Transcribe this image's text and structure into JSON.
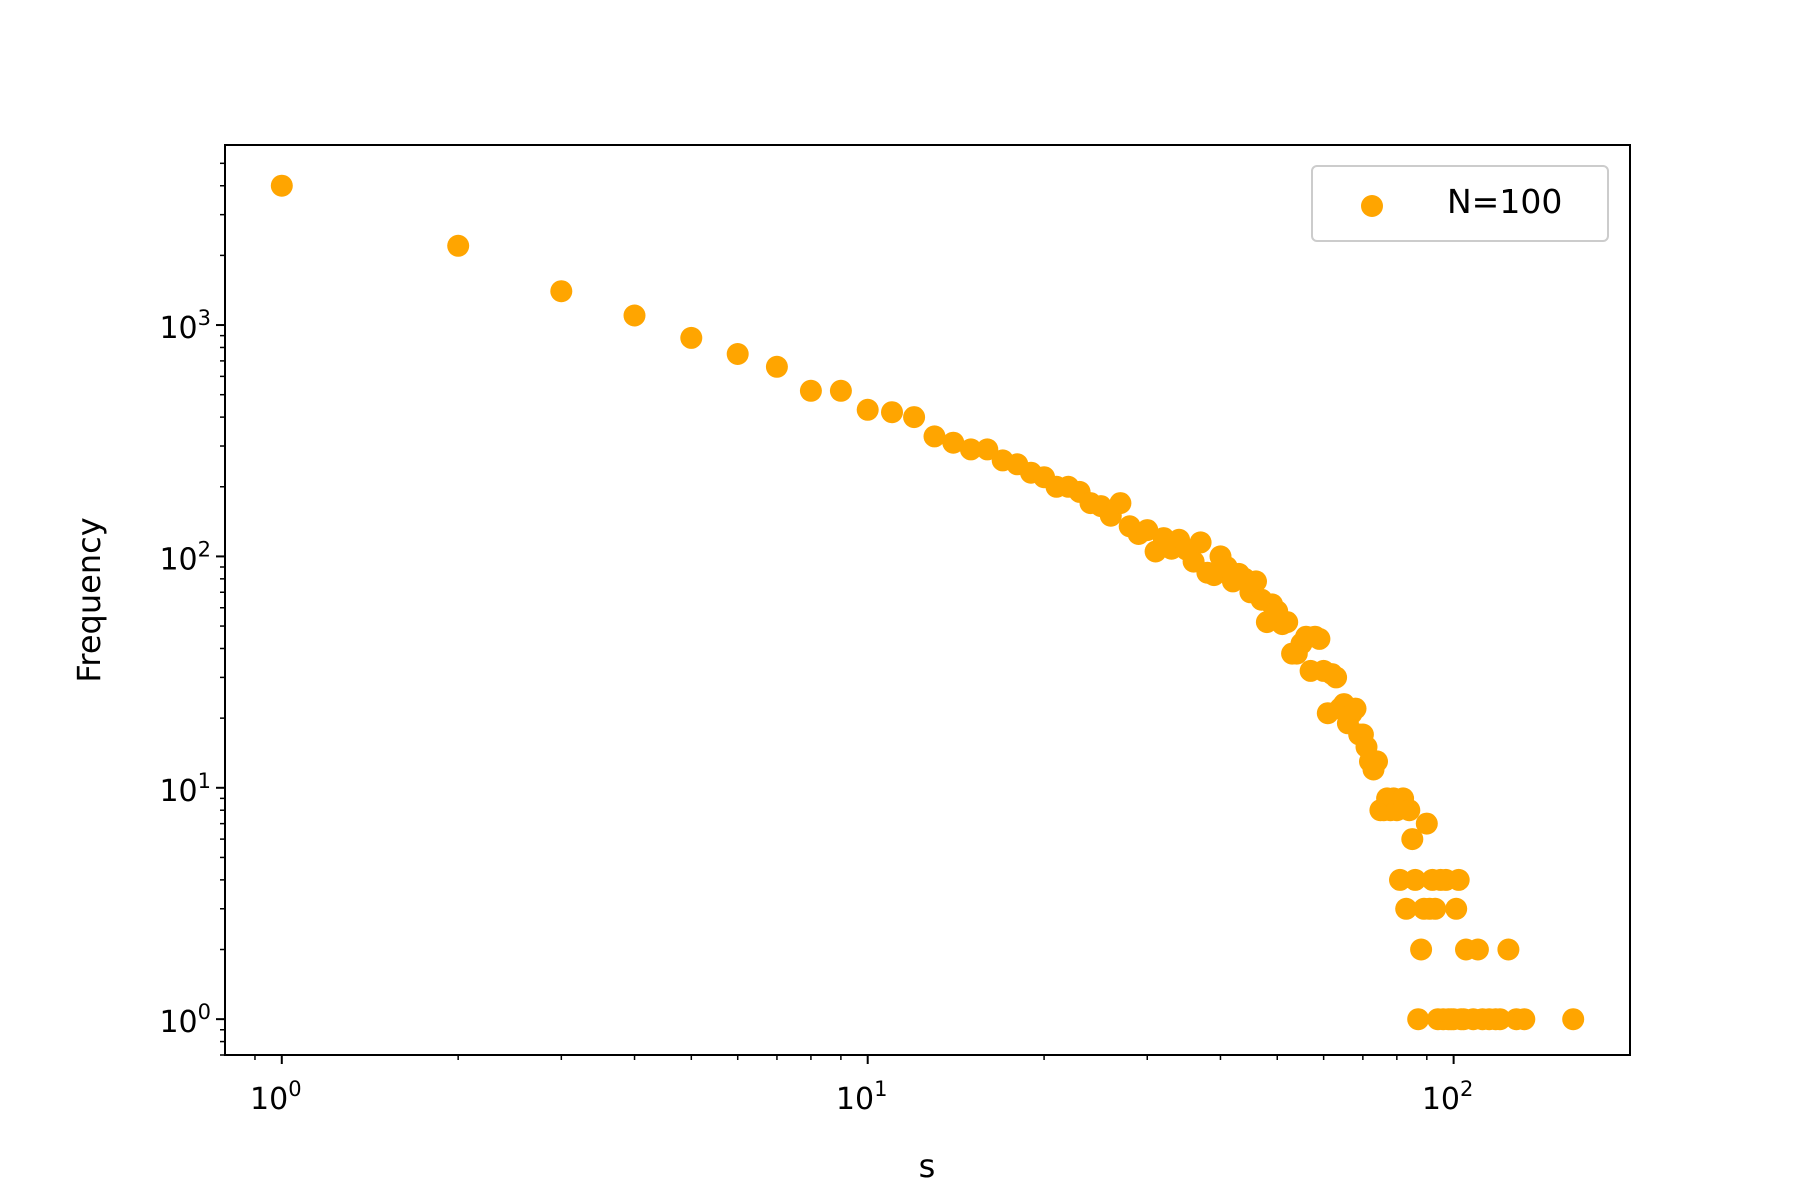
{
  "chart_data": {
    "type": "scatter",
    "title": "",
    "xlabel": "s",
    "ylabel": "Frequency",
    "xscale": "log",
    "yscale": "log",
    "xlim": [
      0.8,
      200
    ],
    "ylim": [
      0.7,
      6000
    ],
    "grid": false,
    "legend_position": "top-right",
    "x_ticks": [
      {
        "value": 1,
        "base": "10",
        "exp": "0"
      },
      {
        "value": 10,
        "base": "10",
        "exp": "1"
      },
      {
        "value": 100,
        "base": "10",
        "exp": "2"
      }
    ],
    "y_ticks": [
      {
        "value": 1,
        "base": "10",
        "exp": "0"
      },
      {
        "value": 10,
        "base": "10",
        "exp": "1"
      },
      {
        "value": 100,
        "base": "10",
        "exp": "2"
      },
      {
        "value": 1000,
        "base": "10",
        "exp": "3"
      }
    ],
    "series": [
      {
        "name": "N=100",
        "color": "#ffa500",
        "points": [
          [
            1,
            4000
          ],
          [
            2,
            2200
          ],
          [
            3,
            1400
          ],
          [
            4,
            1100
          ],
          [
            5,
            880
          ],
          [
            6,
            750
          ],
          [
            7,
            660
          ],
          [
            8,
            520
          ],
          [
            9,
            520
          ],
          [
            10,
            430
          ],
          [
            11,
            420
          ],
          [
            12,
            400
          ],
          [
            13,
            330
          ],
          [
            14,
            310
          ],
          [
            15,
            290
          ],
          [
            16,
            290
          ],
          [
            17,
            260
          ],
          [
            18,
            250
          ],
          [
            19,
            230
          ],
          [
            20,
            220
          ],
          [
            21,
            200
          ],
          [
            22,
            200
          ],
          [
            23,
            190
          ],
          [
            24,
            170
          ],
          [
            25,
            165
          ],
          [
            26,
            150
          ],
          [
            27,
            170
          ],
          [
            28,
            135
          ],
          [
            29,
            125
          ],
          [
            30,
            130
          ],
          [
            31,
            105
          ],
          [
            32,
            120
          ],
          [
            33,
            108
          ],
          [
            34,
            118
          ],
          [
            35,
            107
          ],
          [
            36,
            95
          ],
          [
            37,
            115
          ],
          [
            38,
            85
          ],
          [
            39,
            83
          ],
          [
            40,
            100
          ],
          [
            41,
            90
          ],
          [
            42,
            78
          ],
          [
            43,
            84
          ],
          [
            44,
            80
          ],
          [
            45,
            70
          ],
          [
            46,
            78
          ],
          [
            47,
            65
          ],
          [
            48,
            52
          ],
          [
            49,
            62
          ],
          [
            50,
            58
          ],
          [
            51,
            51
          ],
          [
            52,
            52
          ],
          [
            53,
            38
          ],
          [
            54,
            38
          ],
          [
            55,
            42
          ],
          [
            56,
            45
          ],
          [
            57,
            32
          ],
          [
            58,
            45
          ],
          [
            59,
            44
          ],
          [
            60,
            32
          ],
          [
            61,
            21
          ],
          [
            62,
            31
          ],
          [
            63,
            30
          ],
          [
            64,
            22
          ],
          [
            65,
            23
          ],
          [
            66,
            19
          ],
          [
            67,
            21
          ],
          [
            68,
            22
          ],
          [
            69,
            17
          ],
          [
            70,
            17
          ],
          [
            71,
            15
          ],
          [
            72,
            13
          ],
          [
            73,
            12
          ],
          [
            74,
            13
          ],
          [
            75,
            8
          ],
          [
            76,
            8
          ],
          [
            77,
            9
          ],
          [
            78,
            8
          ],
          [
            79,
            9
          ],
          [
            80,
            8
          ],
          [
            81,
            4
          ],
          [
            82,
            9
          ],
          [
            83,
            3
          ],
          [
            84,
            8
          ],
          [
            85,
            6
          ],
          [
            86,
            4
          ],
          [
            87,
            1
          ],
          [
            88,
            2
          ],
          [
            89,
            3
          ],
          [
            90,
            7
          ],
          [
            91,
            3
          ],
          [
            92,
            4
          ],
          [
            93,
            3
          ],
          [
            94,
            1
          ],
          [
            95,
            4
          ],
          [
            96,
            1
          ],
          [
            97,
            4
          ],
          [
            98,
            1
          ],
          [
            99,
            1
          ],
          [
            100,
            1
          ],
          [
            101,
            3
          ],
          [
            102,
            4
          ],
          [
            103,
            1
          ],
          [
            104,
            1
          ],
          [
            105,
            2
          ],
          [
            108,
            1
          ],
          [
            110,
            2
          ],
          [
            112,
            1
          ],
          [
            115,
            1
          ],
          [
            118,
            1
          ],
          [
            120,
            1
          ],
          [
            124,
            2
          ],
          [
            128,
            1
          ],
          [
            132,
            1
          ],
          [
            160,
            1
          ]
        ]
      }
    ]
  }
}
